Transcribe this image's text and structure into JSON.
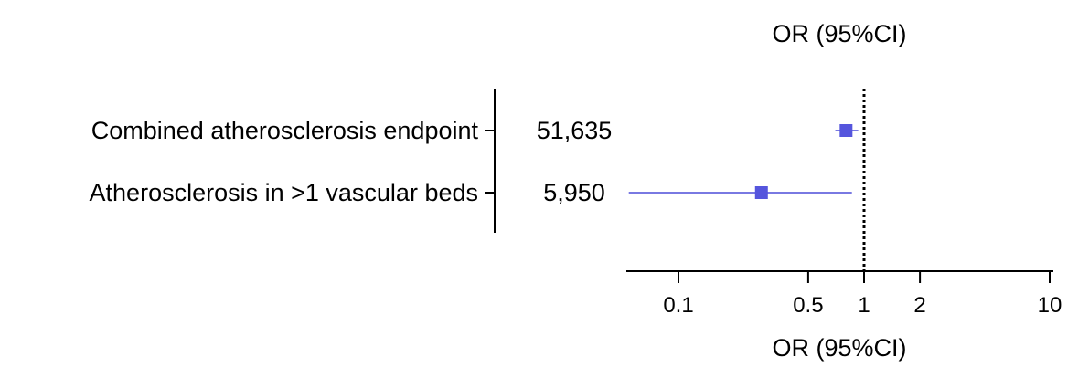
{
  "chart_data": {
    "type": "forest",
    "title": "OR (95%CI)",
    "xlabel": "OR (95%CI)",
    "x_scale": "log",
    "xlim": [
      0.05,
      10
    ],
    "x_ticks": [
      {
        "value": 0.1,
        "label": "0.1"
      },
      {
        "value": 0.5,
        "label": "0.5"
      },
      {
        "value": 1,
        "label": "1"
      },
      {
        "value": 2,
        "label": "2"
      },
      {
        "value": 10,
        "label": "10"
      }
    ],
    "reference_line": 1,
    "rows": [
      {
        "label": "Combined atherosclerosis endpoint",
        "n": "51,635",
        "or": 0.8,
        "ci_low": 0.7,
        "ci_high": 0.93
      },
      {
        "label": "Atherosclerosis in >1 vascular beds",
        "n": "5,950",
        "or": 0.28,
        "ci_low": 0.054,
        "ci_high": 0.86
      }
    ],
    "colors": {
      "marker": "#5555dd",
      "ci_line": "#4d4dd8",
      "axis": "#000000"
    }
  }
}
